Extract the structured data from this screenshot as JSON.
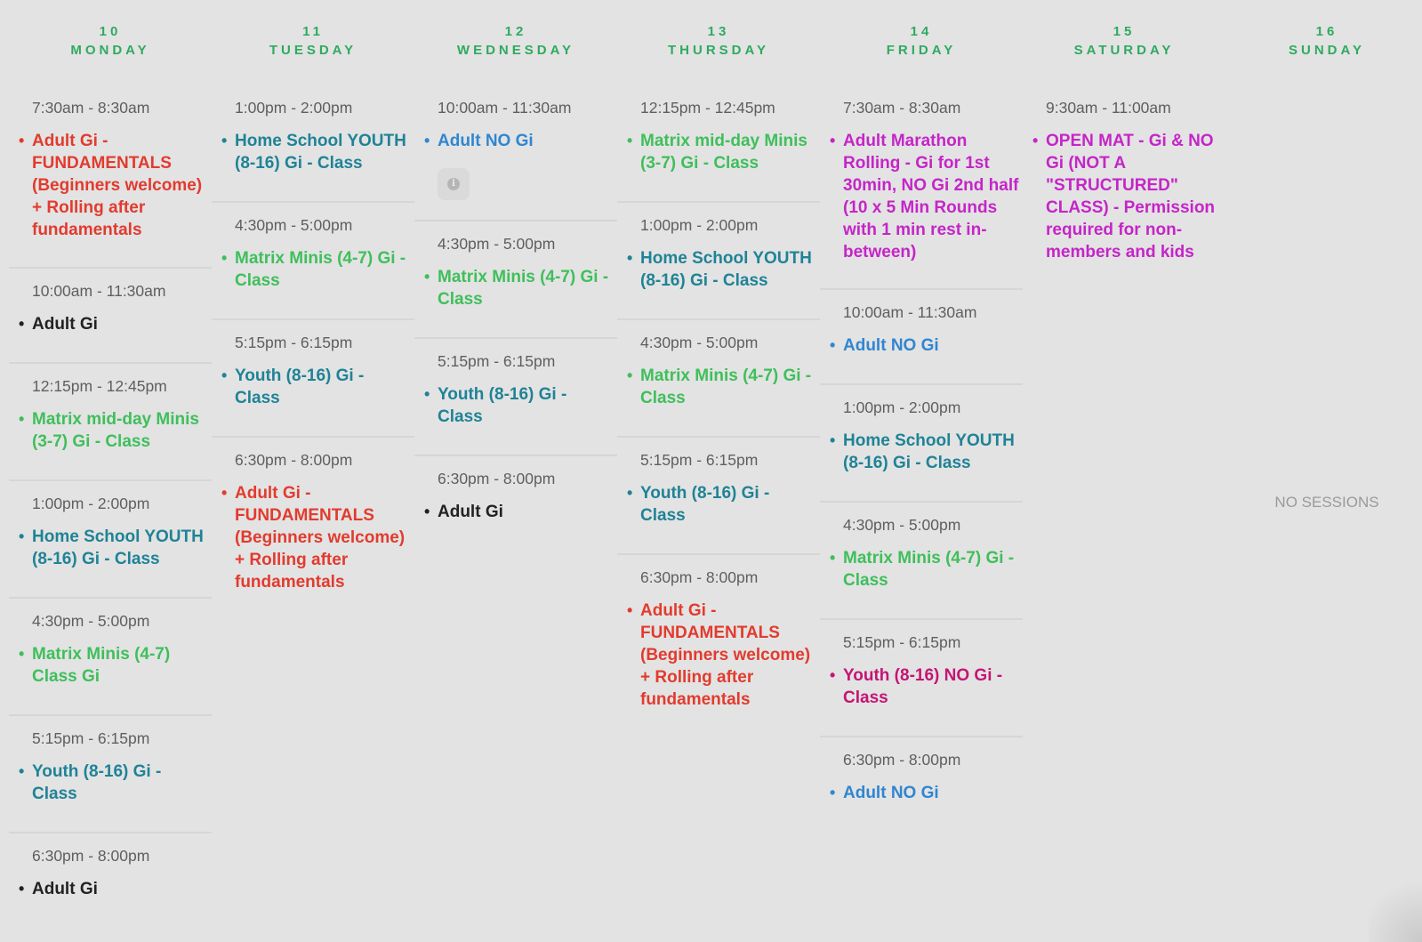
{
  "colors": {
    "header": "#2eaa5f",
    "red": "#e23b2e",
    "green": "#3fbf5b",
    "black": "#222222",
    "blue": "#2f86d1",
    "teal": "#1f8396",
    "magenta": "#c525c8",
    "crimson": "#c41575"
  },
  "days": [
    {
      "num": "10",
      "name": "MONDAY",
      "events": [
        {
          "time": "7:30am - 8:30am",
          "title": "Adult Gi - FUNDAMENTALS (Beginners welcome) + Rolling after fundamentals",
          "color": "red"
        },
        {
          "time": "10:00am - 11:30am",
          "title": "Adult Gi",
          "color": "black"
        },
        {
          "time": "12:15pm - 12:45pm",
          "title": "Matrix mid-day Minis (3-7) Gi - Class",
          "color": "green"
        },
        {
          "time": "1:00pm - 2:00pm",
          "title": "Home School YOUTH (8-16) Gi - Class",
          "color": "teal"
        },
        {
          "time": "4:30pm - 5:00pm",
          "title": "Matrix Minis (4-7) Class Gi",
          "color": "green"
        },
        {
          "time": "5:15pm - 6:15pm",
          "title": "Youth (8-16) Gi - Class",
          "color": "teal"
        },
        {
          "time": "6:30pm - 8:00pm",
          "title": "Adult Gi",
          "color": "black"
        }
      ]
    },
    {
      "num": "11",
      "name": "TUESDAY",
      "events": [
        {
          "time": "1:00pm - 2:00pm",
          "title": "Home School YOUTH (8-16) Gi - Class",
          "color": "teal"
        },
        {
          "time": "4:30pm - 5:00pm",
          "title": "Matrix Minis (4-7) Gi - Class",
          "color": "green"
        },
        {
          "time": "5:15pm - 6:15pm",
          "title": "Youth (8-16) Gi - Class",
          "color": "teal"
        },
        {
          "time": "6:30pm - 8:00pm",
          "title": "Adult Gi - FUNDAMENTALS (Beginners welcome) + Rolling after fundamentals",
          "color": "red"
        }
      ]
    },
    {
      "num": "12",
      "name": "WEDNESDAY",
      "events": [
        {
          "time": "10:00am - 11:30am",
          "title": "Adult NO Gi",
          "color": "blue",
          "info": "i"
        },
        {
          "time": "4:30pm - 5:00pm",
          "title": "Matrix Minis (4-7) Gi - Class",
          "color": "green"
        },
        {
          "time": "5:15pm - 6:15pm",
          "title": "Youth (8-16) Gi - Class",
          "color": "teal"
        },
        {
          "time": "6:30pm - 8:00pm",
          "title": "Adult Gi",
          "color": "black"
        }
      ]
    },
    {
      "num": "13",
      "name": "THURSDAY",
      "events": [
        {
          "time": "12:15pm - 12:45pm",
          "title": "Matrix mid-day Minis (3-7) Gi - Class",
          "color": "green"
        },
        {
          "time": "1:00pm - 2:00pm",
          "title": "Home School YOUTH (8-16) Gi - Class",
          "color": "teal"
        },
        {
          "time": "4:30pm - 5:00pm",
          "title": "Matrix Minis (4-7) Gi - Class",
          "color": "green"
        },
        {
          "time": "5:15pm - 6:15pm",
          "title": "Youth (8-16) Gi - Class",
          "color": "teal"
        },
        {
          "time": "6:30pm - 8:00pm",
          "title": "Adult Gi - FUNDAMENTALS (Beginners welcome) + Rolling after fundamentals",
          "color": "red"
        }
      ]
    },
    {
      "num": "14",
      "name": "FRIDAY",
      "events": [
        {
          "time": "7:30am - 8:30am",
          "title": "Adult Marathon Rolling - Gi for 1st 30min, NO Gi 2nd half (10 x 5 Min Rounds with 1 min rest in-between)",
          "color": "magenta"
        },
        {
          "time": "10:00am - 11:30am",
          "title": "Adult NO Gi",
          "color": "blue"
        },
        {
          "time": "1:00pm - 2:00pm",
          "title": "Home School YOUTH (8-16) Gi - Class",
          "color": "teal"
        },
        {
          "time": "4:30pm - 5:00pm",
          "title": "Matrix Minis (4-7) Gi - Class",
          "color": "green"
        },
        {
          "time": "5:15pm - 6:15pm",
          "title": "Youth (8-16) NO Gi - Class",
          "color": "crimson"
        },
        {
          "time": "6:30pm - 8:00pm",
          "title": "Adult NO Gi",
          "color": "blue"
        }
      ]
    },
    {
      "num": "15",
      "name": "SATURDAY",
      "events": [
        {
          "time": "9:30am - 11:00am",
          "title": "OPEN MAT - Gi & NO Gi (NOT A \"STRUCTURED\" CLASS) - Permission required for non-members and kids",
          "color": "magenta"
        }
      ]
    },
    {
      "num": "16",
      "name": "SUNDAY",
      "events": [],
      "empty_text": "NO SESSIONS"
    }
  ]
}
